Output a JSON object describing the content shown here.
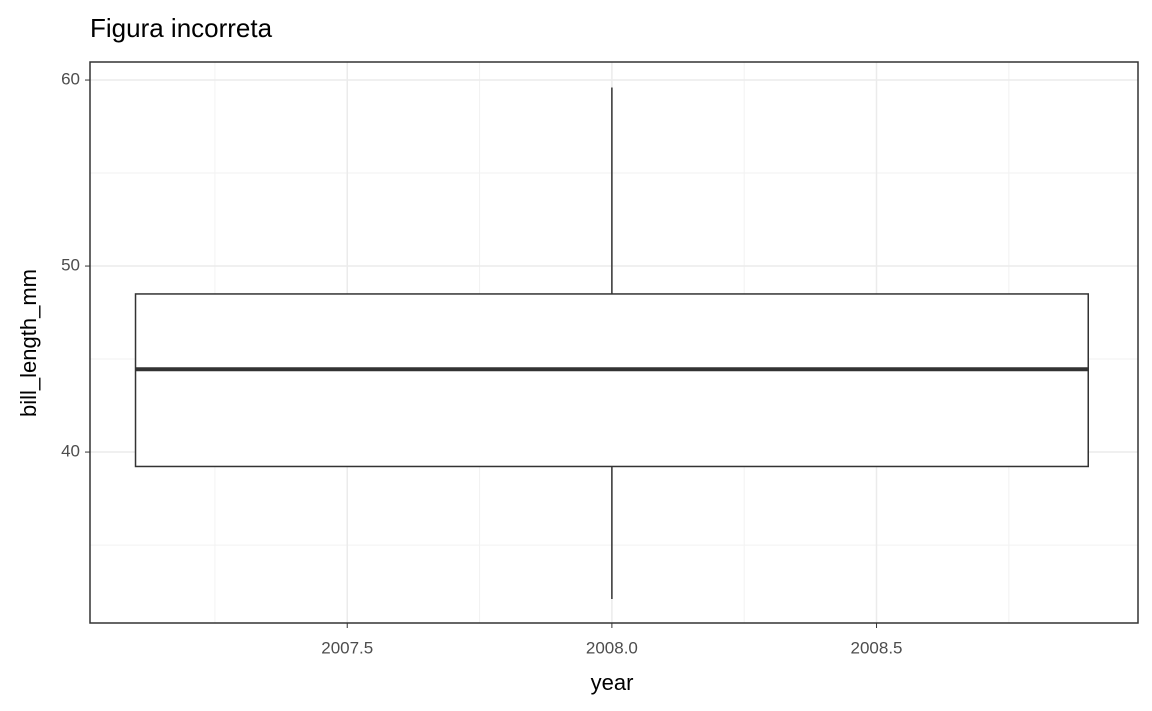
{
  "chart_data": {
    "type": "box",
    "title": "Figura incorreta",
    "x_label": "year",
    "y_label": "bill_length_mm",
    "xlim": [
      2007.014,
      2008.994
    ],
    "ylim": [
      30.81,
      60.97
    ],
    "xticks": [
      2007.5,
      {
        "value": 2008,
        "label": "2008.0"
      },
      2008.5
    ],
    "yticks": [
      40,
      50,
      60
    ],
    "x_minor_ticks": [
      2007.25,
      2007.75,
      2008.25,
      2008.75
    ],
    "y_minor_ticks": [
      35,
      45,
      55
    ],
    "grid": true,
    "boxes": [
      {
        "x": 2008,
        "min": 32.1,
        "q1": 39.225,
        "median": 44.45,
        "q3": 48.5,
        "max": 59.6
      }
    ]
  }
}
